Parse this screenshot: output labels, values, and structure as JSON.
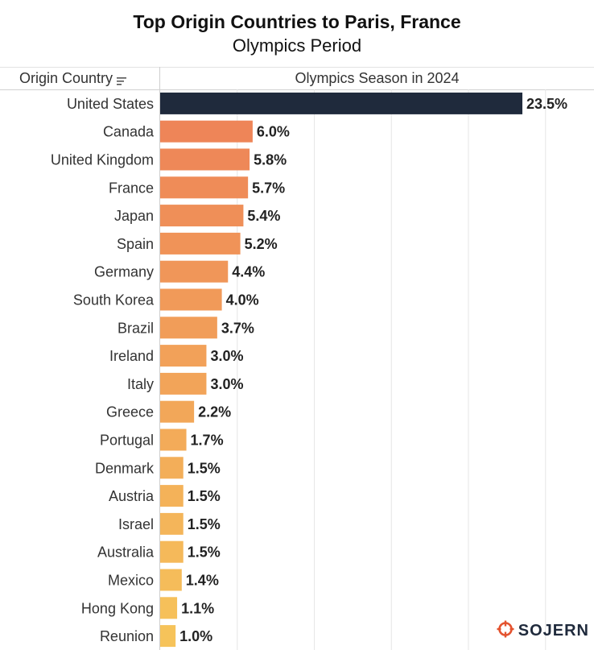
{
  "header": {
    "title": "Top Origin Countries to Paris, France",
    "subtitle": "Olympics Period",
    "column_country": "Origin Country",
    "column_season": "Olympics Season in 2024"
  },
  "logo": {
    "text": "SOJERN",
    "icon": "sojern-compass-icon",
    "color": "#e4532f"
  },
  "chart_data": {
    "type": "bar",
    "orientation": "horizontal",
    "title": "Top Origin Countries to Paris, France",
    "subtitle": "Olympics Period",
    "categories": [
      "United States",
      "Canada",
      "United Kingdom",
      "France",
      "Japan",
      "Spain",
      "Germany",
      "South Korea",
      "Brazil",
      "Ireland",
      "Italy",
      "Greece",
      "Portugal",
      "Denmark",
      "Austria",
      "Israel",
      "Australia",
      "Mexico",
      "Hong Kong",
      "Reunion"
    ],
    "values": [
      23.5,
      6.0,
      5.8,
      5.7,
      5.4,
      5.2,
      4.4,
      4.0,
      3.7,
      3.0,
      3.0,
      2.2,
      1.7,
      1.5,
      1.5,
      1.5,
      1.5,
      1.4,
      1.1,
      1.0
    ],
    "labels": [
      "23.5%",
      "6.0%",
      "5.8%",
      "5.7%",
      "5.4%",
      "5.2%",
      "4.4%",
      "4.0%",
      "3.7%",
      "3.0%",
      "3.0%",
      "2.2%",
      "1.7%",
      "1.5%",
      "1.5%",
      "1.5%",
      "1.5%",
      "1.4%",
      "1.1%",
      "1.0%"
    ],
    "xlabel": "",
    "ylabel": "Origin Country",
    "series_name": "Olympics Season in 2024",
    "xlim": [
      0,
      28
    ],
    "gridlines": [
      5,
      10,
      15,
      20,
      25
    ],
    "grid": true,
    "legend": "none",
    "colors": {
      "highlight": "#1f2a3c",
      "gradient_start": "#ee8558",
      "gradient_end": "#f6c35a",
      "grid": "#e6e6e6"
    }
  }
}
